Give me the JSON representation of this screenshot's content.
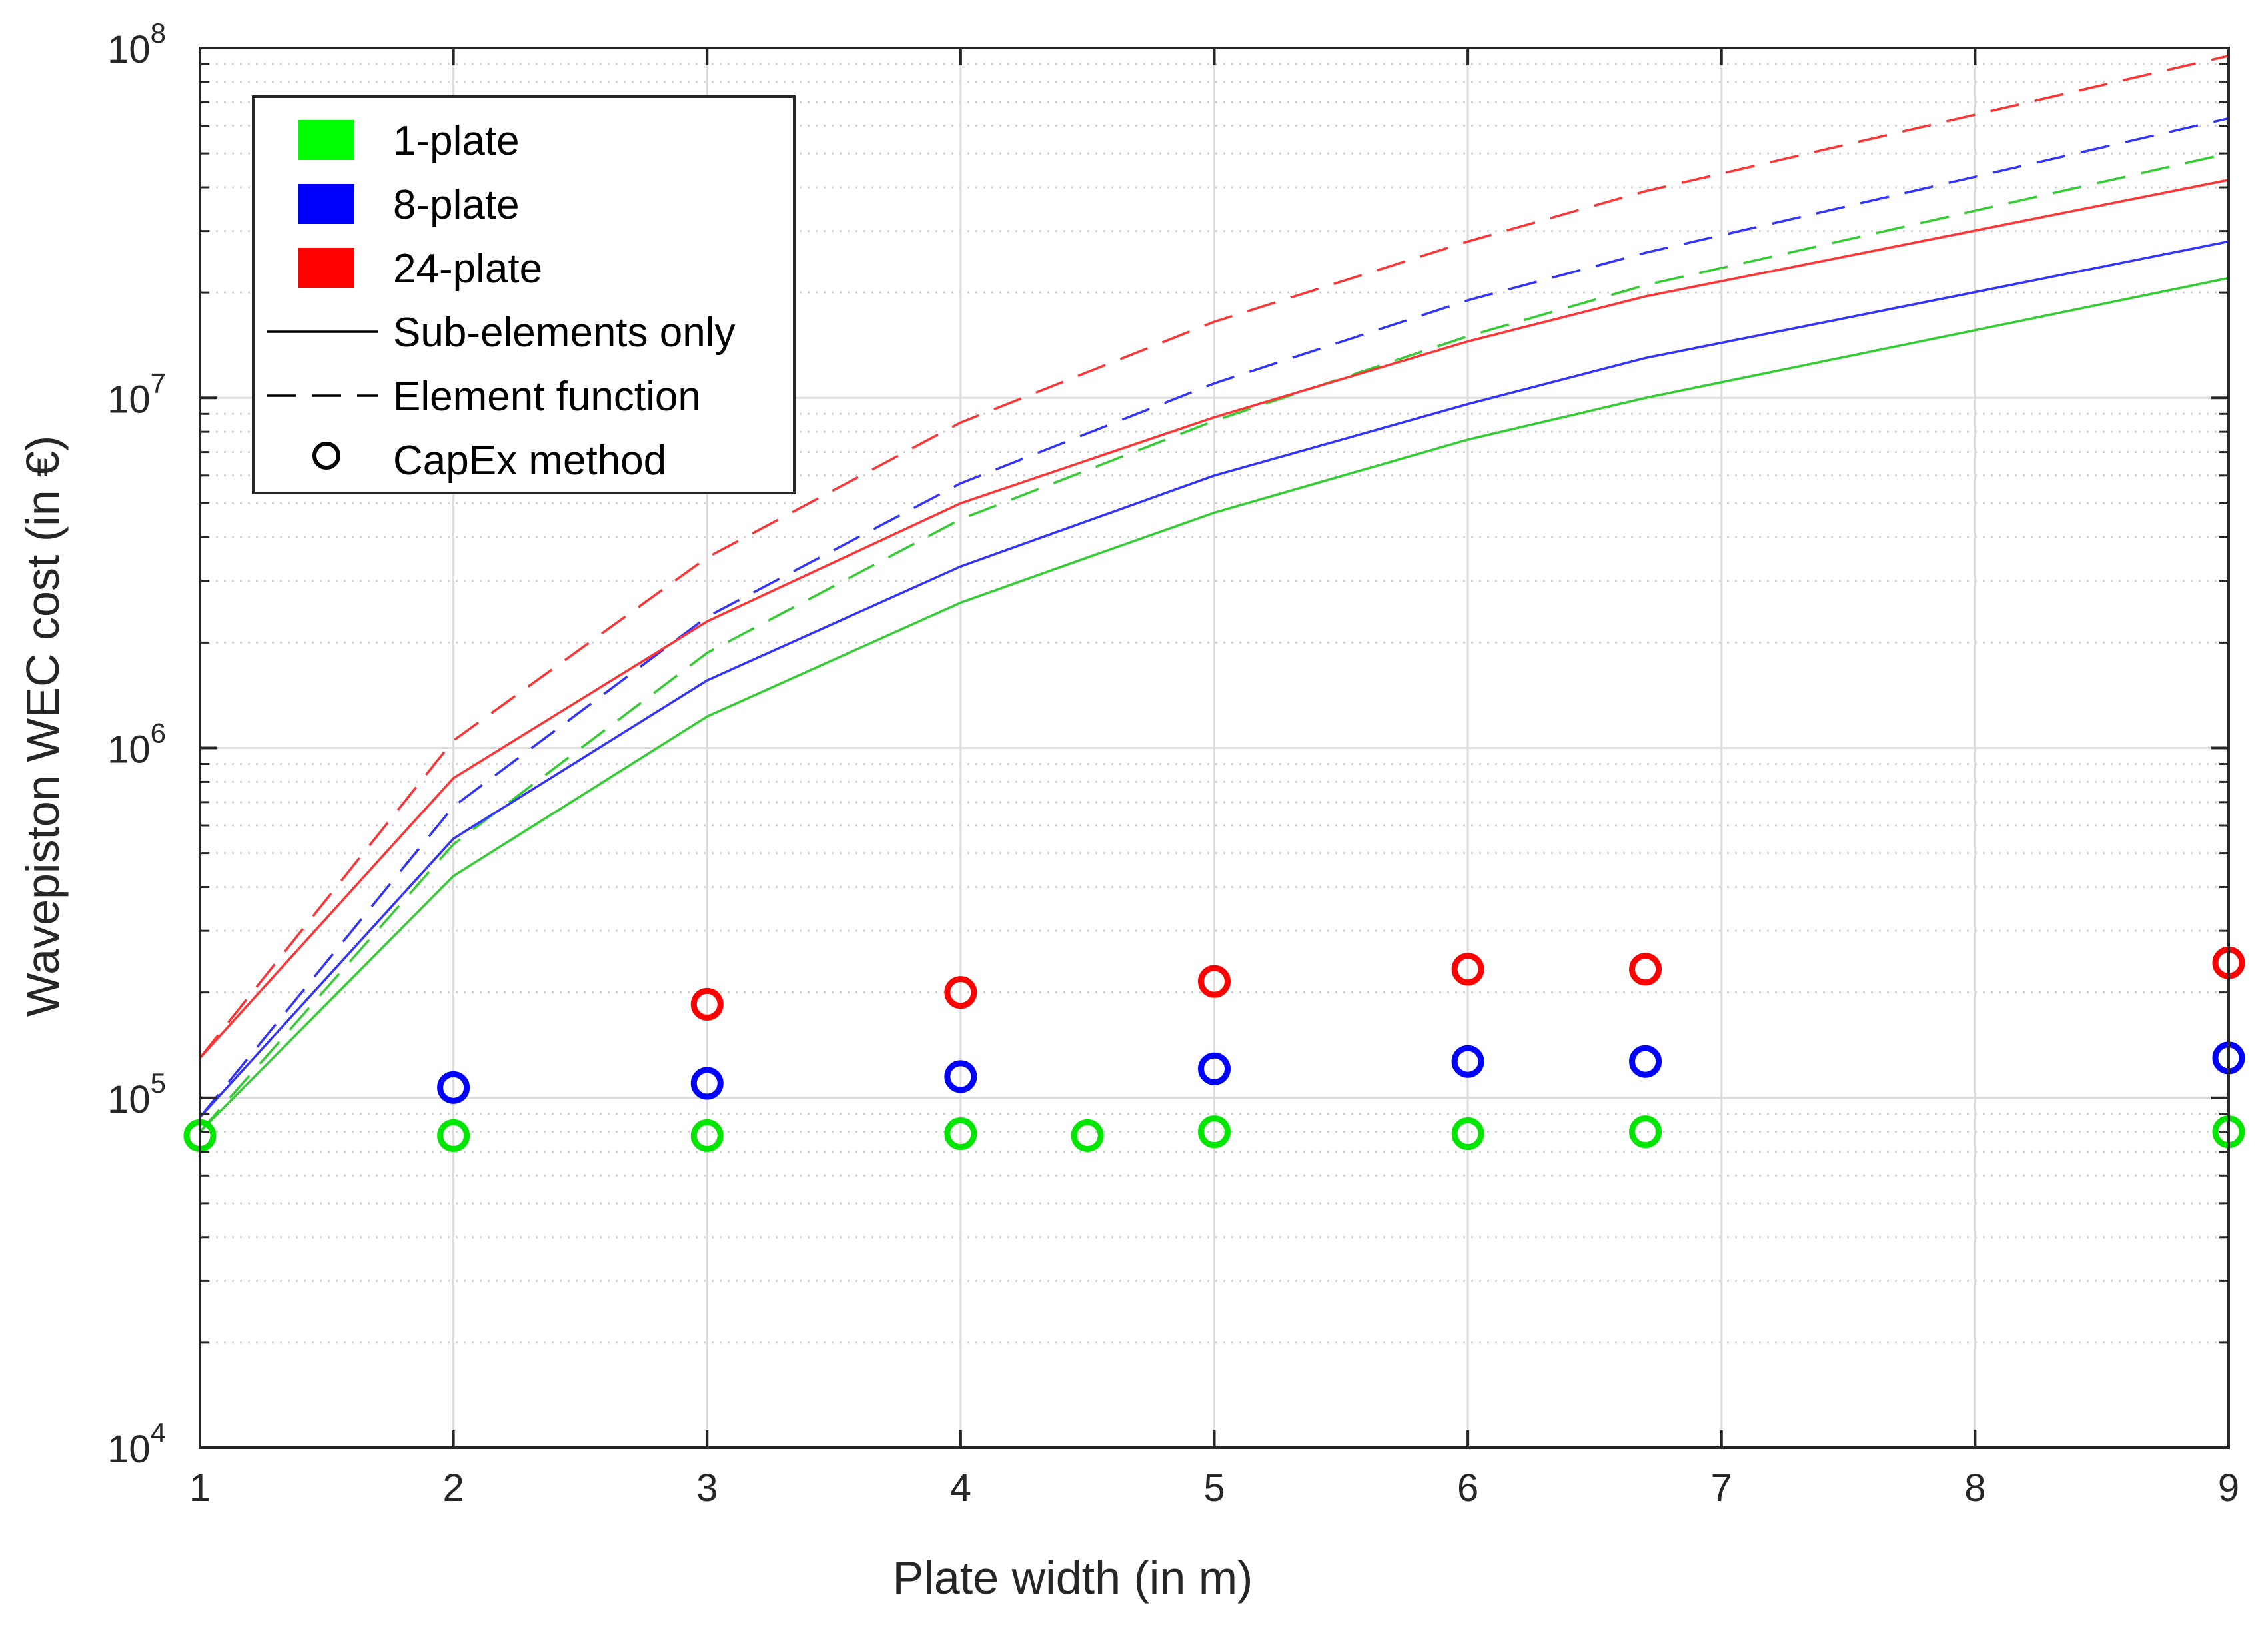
{
  "chart_data": {
    "type": "line",
    "title": "",
    "xlabel": "Plate width (in m)",
    "ylabel": "Wavepiston WEC cost (in €)",
    "xlim": [
      1,
      9
    ],
    "ylim": [
      10000,
      100000000
    ],
    "yscale": "log",
    "grid": true,
    "legend_position": "top-left",
    "x_ticks": [
      "1",
      "2",
      "3",
      "4",
      "5",
      "6",
      "7",
      "8",
      "9"
    ],
    "y_ticks": [
      {
        "base": "10",
        "exp": "4"
      },
      {
        "base": "10",
        "exp": "5"
      },
      {
        "base": "10",
        "exp": "6"
      },
      {
        "base": "10",
        "exp": "7"
      },
      {
        "base": "10",
        "exp": "8"
      }
    ],
    "legend": [
      {
        "label": "1-plate",
        "kind": "swatch",
        "color": "#00ff00"
      },
      {
        "label": "8-plate",
        "kind": "swatch",
        "color": "#0000ff"
      },
      {
        "label": "24-plate",
        "kind": "swatch",
        "color": "#ff0000"
      },
      {
        "label": "Sub-elements only",
        "kind": "solid",
        "color": "#000000"
      },
      {
        "label": "Element function",
        "kind": "dashed",
        "color": "#000000"
      },
      {
        "label": "CapEx method",
        "kind": "circle",
        "color": "#000000"
      }
    ],
    "series": [
      {
        "name": "1-plate, Sub-elements only",
        "color": "#33cc33",
        "style": "solid",
        "x": [
          1,
          2,
          3,
          4,
          4.5,
          5,
          6,
          6.7,
          9
        ],
        "values": [
          80000,
          430000,
          1230000,
          2600000,
          3500000,
          4700000,
          7600000,
          10000000,
          22000000
        ]
      },
      {
        "name": "1-plate, Element function",
        "color": "#33cc33",
        "style": "dashed",
        "x": [
          1,
          2,
          3,
          4,
          5,
          6,
          6.7,
          9
        ],
        "values": [
          80000,
          530000,
          1870000,
          4500000,
          8600000,
          15000000,
          21000000,
          50000000
        ]
      },
      {
        "name": "8-plate, Sub-elements only",
        "color": "#3333ff",
        "style": "solid",
        "x": [
          1,
          2,
          3,
          4,
          5,
          6,
          6.7,
          9
        ],
        "values": [
          88000,
          550000,
          1560000,
          3300000,
          6000000,
          9600000,
          13000000,
          28000000
        ]
      },
      {
        "name": "8-plate, Element function",
        "color": "#3333ff",
        "style": "dashed",
        "x": [
          1,
          2,
          3,
          4,
          5,
          6,
          6.7,
          9
        ],
        "values": [
          88000,
          680000,
          2370000,
          5700000,
          11000000,
          19000000,
          26000000,
          63000000
        ]
      },
      {
        "name": "24-plate, Sub-elements only",
        "color": "#ff3333",
        "style": "solid",
        "x": [
          1,
          2,
          3,
          4,
          5,
          6,
          6.7,
          9
        ],
        "values": [
          130000,
          820000,
          2300000,
          5000000,
          8800000,
          14500000,
          19500000,
          42000000
        ]
      },
      {
        "name": "24-plate, Element function",
        "color": "#ff3333",
        "style": "dashed",
        "x": [
          1,
          2,
          3,
          4,
          5,
          6,
          6.7,
          9
        ],
        "values": [
          130000,
          1050000,
          3500000,
          8500000,
          16500000,
          28000000,
          39000000,
          95000000
        ]
      },
      {
        "name": "1-plate, CapEx method",
        "color": "#00e600",
        "style": "circle",
        "x": [
          1,
          2,
          3,
          4,
          4.5,
          5,
          6,
          6.7,
          9
        ],
        "values": [
          78000,
          78000,
          78000,
          79000,
          78000,
          80000,
          79000,
          80000,
          80000
        ]
      },
      {
        "name": "8-plate, CapEx method",
        "color": "#0000ff",
        "style": "circle",
        "x": [
          2,
          3,
          4,
          5,
          6,
          6.7,
          9
        ],
        "values": [
          107000,
          110000,
          115000,
          121000,
          127000,
          127000,
          130000
        ]
      },
      {
        "name": "24-plate, CapEx method",
        "color": "#ff0000",
        "style": "circle",
        "x": [
          3,
          4,
          5,
          6,
          6.7,
          9
        ],
        "values": [
          185000,
          200000,
          215000,
          233000,
          233000,
          243000
        ]
      }
    ]
  }
}
